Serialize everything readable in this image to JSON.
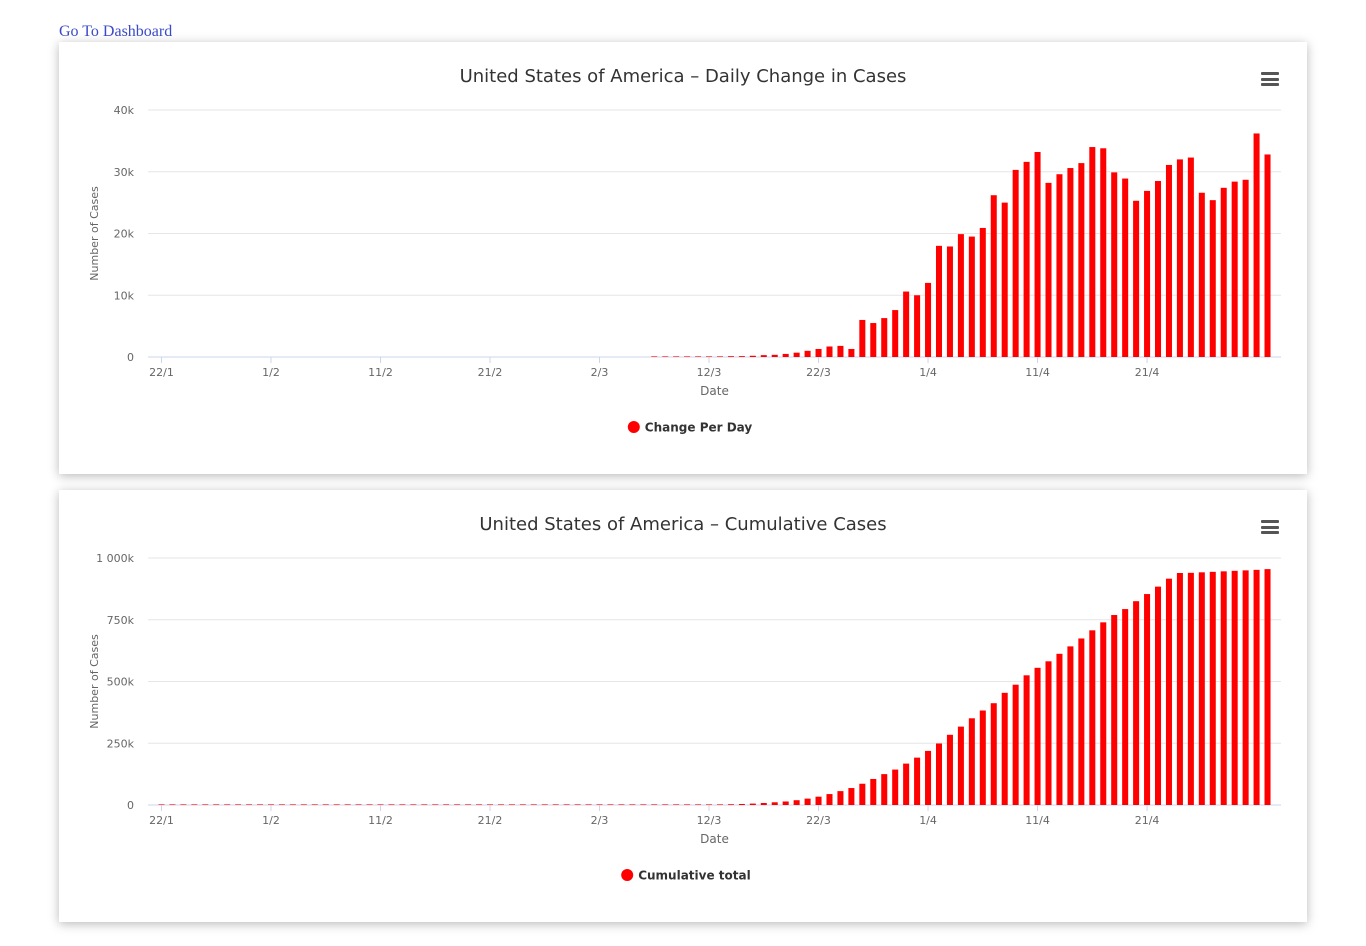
{
  "link": {
    "label": "Go To Dashboard"
  },
  "chart_data": [
    {
      "type": "bar",
      "title": "United States of America – Daily Change in Cases",
      "xlabel": "Date",
      "ylabel": "Number of Cases",
      "ylim": [
        0,
        40000
      ],
      "yticks": [
        0,
        10000,
        20000,
        30000,
        40000
      ],
      "ytick_labels": [
        "0",
        "10k",
        "20k",
        "30k",
        "40k"
      ],
      "xtick_labels": [
        "22/1",
        "1/2",
        "11/2",
        "21/2",
        "2/3",
        "12/3",
        "22/3",
        "1/4",
        "11/4",
        "21/4"
      ],
      "xtick_indices": [
        0,
        10,
        20,
        30,
        40,
        50,
        60,
        70,
        80,
        90
      ],
      "start_date": "22/1",
      "legend": "Change Per Day",
      "color": "#ff0000",
      "values": [
        0,
        0,
        0,
        0,
        0,
        0,
        0,
        0,
        0,
        0,
        0,
        0,
        0,
        0,
        0,
        0,
        0,
        0,
        0,
        0,
        0,
        0,
        0,
        0,
        0,
        0,
        0,
        0,
        0,
        0,
        0,
        0,
        0,
        0,
        0,
        0,
        0,
        0,
        0,
        0,
        0,
        0,
        0,
        0,
        0,
        10,
        5,
        15,
        20,
        30,
        50,
        100,
        130,
        140,
        200,
        300,
        350,
        500,
        700,
        1000,
        1300,
        1700,
        1800,
        1300,
        6000,
        5500,
        6300,
        7600,
        10600,
        10000,
        12000,
        18000,
        17900,
        19900,
        19500,
        20900,
        26200,
        25000,
        30300,
        31600,
        33200,
        28200,
        29600,
        30600,
        31400,
        34000,
        33800,
        29900,
        28900,
        25300,
        26900,
        28500,
        31100,
        32000,
        32300,
        26600,
        25400,
        27400,
        28400,
        28700,
        36200,
        32800
      ]
    },
    {
      "type": "bar",
      "title": "United States of America – Cumulative Cases",
      "xlabel": "Date",
      "ylabel": "Number of Cases",
      "ylim": [
        0,
        1000000
      ],
      "yticks": [
        0,
        250000,
        500000,
        750000,
        1000000
      ],
      "ytick_labels": [
        "0",
        "250k",
        "500k",
        "750k",
        "1 000k"
      ],
      "xtick_labels": [
        "22/1",
        "1/2",
        "11/2",
        "21/2",
        "2/3",
        "12/3",
        "22/3",
        "1/4",
        "11/4",
        "21/4"
      ],
      "xtick_indices": [
        0,
        10,
        20,
        30,
        40,
        50,
        60,
        70,
        80,
        90
      ],
      "start_date": "22/1",
      "legend": "Cumulative total",
      "color": "#ff0000",
      "values": [
        1,
        1,
        2,
        2,
        5,
        5,
        5,
        5,
        5,
        6,
        6,
        8,
        8,
        11,
        11,
        11,
        11,
        12,
        12,
        12,
        13,
        13,
        15,
        15,
        15,
        15,
        15,
        15,
        15,
        35,
        35,
        35,
        53,
        57,
        60,
        62,
        64,
        69,
        89,
        106,
        125,
        161,
        228,
        311,
        442,
        523,
        683,
        855,
        1152,
        1515,
        1878,
        2463,
        3064,
        4078,
        5671,
        8085,
        10974,
        14231,
        19397,
        25832,
        33658,
        44221,
        56182,
        68681,
        86064,
        105358,
        125003,
        143455,
        167591,
        191794,
        218964,
        249001,
        284220,
        317310,
        351037,
        382575,
        412135,
        454112,
        487008,
        525025,
        555390,
        581728,
        612155,
        642223,
        674210,
        707203,
        739536,
        769157,
        793213,
        825149,
        854024,
        884092,
        916302,
        939285,
        940000,
        942000,
        944000,
        946000,
        948000,
        950000,
        952000,
        955000
      ]
    }
  ]
}
